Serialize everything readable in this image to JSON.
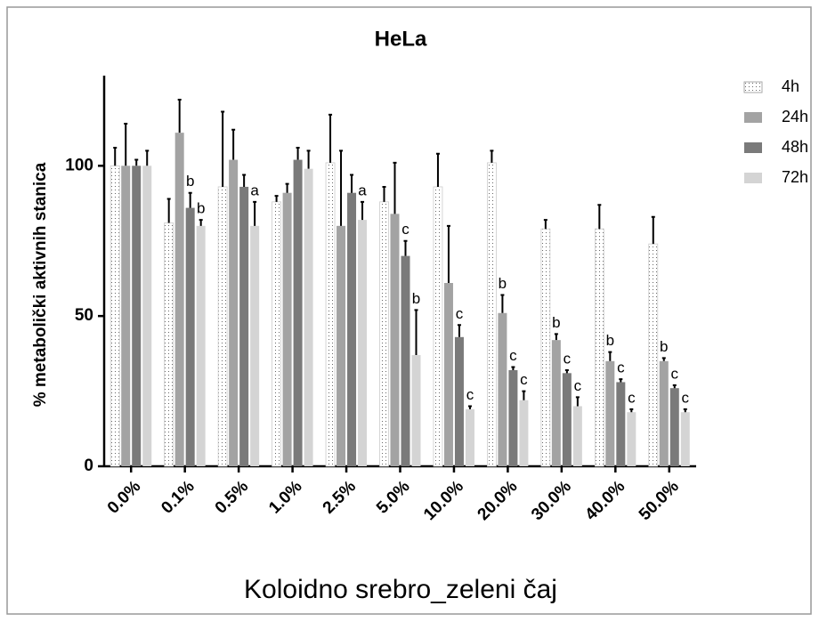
{
  "chart_data": {
    "type": "bar",
    "title": "HeLa",
    "y_label": "% metabolički aktivnih stanica",
    "x_label": "Koloidno srebro_zeleni čaj",
    "categories": [
      "0.0%",
      "0.1%",
      "0.5%",
      "1.0%",
      "2.5%",
      "5.0%",
      "10.0%",
      "20.0%",
      "30.0%",
      "40.0%",
      "50.0%"
    ],
    "series": [
      {
        "name": "4h",
        "color": "#ffffff",
        "pattern": "dots",
        "values": [
          100,
          81,
          93,
          88,
          101,
          88,
          93,
          101,
          79,
          79,
          74
        ],
        "errors": [
          6,
          8,
          25,
          2,
          16,
          5,
          11,
          4,
          3,
          8,
          9
        ],
        "labels": [
          null,
          null,
          null,
          null,
          null,
          null,
          null,
          null,
          null,
          null,
          null
        ]
      },
      {
        "name": "24h",
        "color": "#a3a3a3",
        "values": [
          100,
          111,
          102,
          91,
          80,
          84,
          61,
          51,
          42,
          35,
          35
        ],
        "errors": [
          14,
          11,
          10,
          3,
          25,
          17,
          19,
          6,
          2,
          3,
          1
        ],
        "labels": [
          null,
          null,
          null,
          null,
          null,
          null,
          null,
          "b",
          "b",
          "b",
          "b"
        ]
      },
      {
        "name": "48h",
        "color": "#7a7a7a",
        "values": [
          100,
          86,
          93,
          102,
          91,
          70,
          43,
          32,
          31,
          28,
          26
        ],
        "errors": [
          2,
          5,
          4,
          4,
          6,
          5,
          4,
          1,
          1,
          1,
          1
        ],
        "labels": [
          null,
          "b",
          null,
          null,
          null,
          "c",
          "c",
          "c",
          "c",
          "c",
          "c"
        ]
      },
      {
        "name": "72h",
        "color": "#d4d4d4",
        "values": [
          100,
          80,
          80,
          99,
          82,
          37,
          19,
          22,
          20,
          18,
          18
        ],
        "errors": [
          5,
          2,
          8,
          6,
          6,
          15,
          1,
          3,
          3,
          1,
          1
        ],
        "labels": [
          null,
          "b",
          "a",
          null,
          "a",
          "b",
          "c",
          "c",
          "c",
          "c",
          "c"
        ]
      }
    ],
    "ylim": [
      0,
      130
    ],
    "yticks": [
      0,
      50,
      100
    ],
    "legend": "right"
  }
}
